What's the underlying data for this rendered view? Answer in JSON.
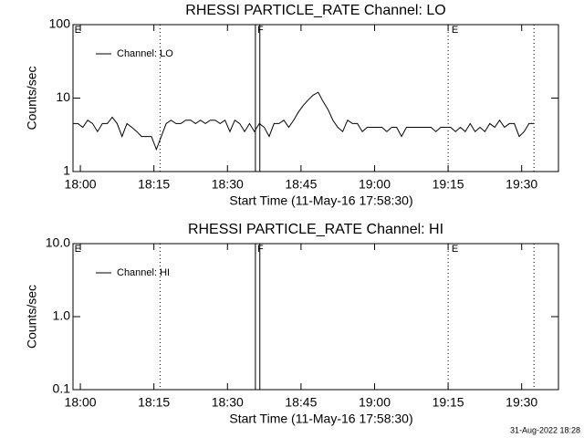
{
  "chart_data": [
    {
      "type": "line",
      "title": "RHESSI PARTICLE_RATE Channel: LO",
      "xlabel": "Start Time (11-May-16 17:58:30)",
      "ylabel": "Counts/sec",
      "x": [
        0,
        1,
        2,
        3,
        4,
        5,
        6,
        7,
        8,
        9,
        10,
        11,
        12,
        13,
        14,
        15,
        16,
        17,
        18,
        19,
        20,
        21,
        22,
        23,
        24,
        25,
        26,
        27,
        28,
        29,
        30,
        31,
        32,
        33,
        34,
        35,
        36,
        37,
        38,
        39,
        40,
        41,
        42,
        43,
        44,
        45,
        46,
        47,
        48,
        49,
        50,
        51,
        52,
        53,
        54,
        55,
        56,
        57,
        58,
        59,
        60,
        61,
        62,
        63,
        64,
        65,
        66,
        67,
        68,
        69,
        70,
        71,
        72,
        73,
        74,
        75,
        76,
        77,
        78,
        79,
        80,
        81,
        82,
        83,
        84,
        85,
        86,
        87,
        88,
        89,
        90,
        91,
        92,
        93,
        94
      ],
      "series": [
        {
          "name": "Channel: LO",
          "color": "#000000",
          "values": [
            4.5,
            4.5,
            4,
            5,
            4.5,
            3.5,
            4.5,
            4.5,
            5.5,
            4.5,
            3,
            4.5,
            4,
            3.5,
            3,
            3,
            3,
            2,
            3,
            4.5,
            5,
            4.5,
            4.5,
            5,
            5,
            4.5,
            5,
            4.5,
            5,
            5,
            4.5,
            5,
            3.5,
            5,
            4.5,
            3.5,
            4.5,
            3.5,
            4.5,
            4,
            3,
            4.5,
            4.5,
            5,
            4,
            5,
            6.5,
            8,
            9.5,
            11,
            12,
            9,
            7,
            5,
            4,
            3.5,
            5,
            4.5,
            4.5,
            3.5,
            4,
            4,
            4,
            4,
            3.5,
            4,
            4,
            3,
            4,
            4,
            4,
            4,
            4,
            4,
            3.5,
            4,
            4,
            4,
            3.5,
            4,
            3.5,
            4.5,
            3.5,
            4,
            3.5,
            4.5,
            4,
            5,
            4,
            4.5,
            4.5,
            3,
            3.5,
            4.5,
            4.5
          ]
        }
      ],
      "xlim": [
        0,
        99
      ],
      "xticks": [
        {
          "value": 1.5,
          "label": "18:00"
        },
        {
          "value": 16.5,
          "label": "18:15"
        },
        {
          "value": 31.5,
          "label": "18:30"
        },
        {
          "value": 46.5,
          "label": "18:45"
        },
        {
          "value": 61.5,
          "label": "19:00"
        },
        {
          "value": 76.5,
          "label": "19:15"
        },
        {
          "value": 91.5,
          "label": "19:30"
        }
      ],
      "ylim": [
        1,
        100
      ],
      "yticks": [
        1,
        10,
        100
      ],
      "log_y": true,
      "legend": "upper left",
      "markers": [
        {
          "x": 17.75,
          "style": "dotted"
        },
        {
          "x": 76.5,
          "style": "dotted"
        },
        {
          "x": 94,
          "style": "dotted"
        },
        {
          "x": 37.2,
          "style": "solid"
        },
        {
          "x": 38.1,
          "style": "solid"
        }
      ],
      "annotations": [
        {
          "text": "E",
          "x": 0.3
        },
        {
          "text": "F",
          "x": 37.6
        },
        {
          "text": "E",
          "x": 77.2
        }
      ]
    },
    {
      "type": "line",
      "title": "RHESSI PARTICLE_RATE Channel: HI",
      "xlabel": "Start Time (11-May-16 17:58:30)",
      "ylabel": "Counts/sec",
      "x": [],
      "series": [
        {
          "name": "Channel: HI",
          "color": "#000000",
          "values": []
        }
      ],
      "xlim": [
        0,
        99
      ],
      "xticks": [
        {
          "value": 1.5,
          "label": "18:00"
        },
        {
          "value": 16.5,
          "label": "18:15"
        },
        {
          "value": 31.5,
          "label": "18:30"
        },
        {
          "value": 46.5,
          "label": "18:45"
        },
        {
          "value": 61.5,
          "label": "19:00"
        },
        {
          "value": 76.5,
          "label": "19:15"
        },
        {
          "value": 91.5,
          "label": "19:30"
        }
      ],
      "ylim": [
        0.1,
        10
      ],
      "yticks": [
        0.1,
        {
          "value": 1,
          "label": "1.0"
        },
        {
          "value": 10,
          "label": "10.0"
        }
      ],
      "log_y": true,
      "legend": "upper left",
      "markers": [
        {
          "x": 17.75,
          "style": "dotted"
        },
        {
          "x": 76.5,
          "style": "dotted"
        },
        {
          "x": 94,
          "style": "dotted"
        },
        {
          "x": 37.2,
          "style": "solid"
        },
        {
          "x": 38.1,
          "style": "solid"
        }
      ],
      "annotations": [
        {
          "text": "E",
          "x": 0.3
        },
        {
          "text": "F",
          "x": 37.6
        },
        {
          "text": "E",
          "x": 77.2
        }
      ]
    }
  ],
  "footer": "31-Aug-2022 18:28"
}
